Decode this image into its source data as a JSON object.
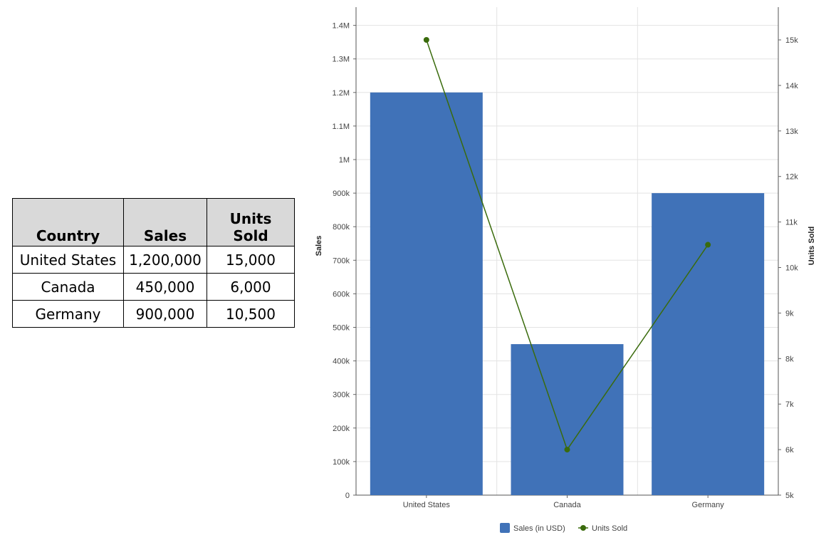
{
  "table": {
    "headers": [
      "Country",
      "Sales",
      "Units Sold"
    ],
    "rows": [
      [
        "United States",
        "1,200,000",
        "15,000"
      ],
      [
        "Canada",
        "450,000",
        "6,000"
      ],
      [
        "Germany",
        "900,000",
        "10,500"
      ]
    ]
  },
  "chart_data": {
    "type": "bar+line",
    "categories": [
      "United States",
      "Canada",
      "Germany"
    ],
    "series": [
      {
        "name": "Sales (in USD)",
        "type": "bar",
        "axis": "left",
        "values": [
          1200000,
          450000,
          900000
        ],
        "color": "#4072b8"
      },
      {
        "name": "Units Sold",
        "type": "line",
        "axis": "right",
        "values": [
          15000,
          6000,
          10500
        ],
        "color": "#3a6b0c"
      }
    ],
    "ylabel": "Sales",
    "y2label": "Units Sold",
    "ylim": [
      0,
      1400000
    ],
    "y2lim": [
      5000,
      15000
    ],
    "yticks": [
      "0",
      "100k",
      "200k",
      "300k",
      "400k",
      "500k",
      "600k",
      "700k",
      "800k",
      "900k",
      "1M",
      "1.1M",
      "1.2M",
      "1.3M",
      "1.4M"
    ],
    "y2ticks": [
      "5k",
      "6k",
      "7k",
      "8k",
      "9k",
      "10k",
      "11k",
      "12k",
      "13k",
      "14k",
      "15k"
    ],
    "grid": true,
    "legend": "bottom"
  }
}
